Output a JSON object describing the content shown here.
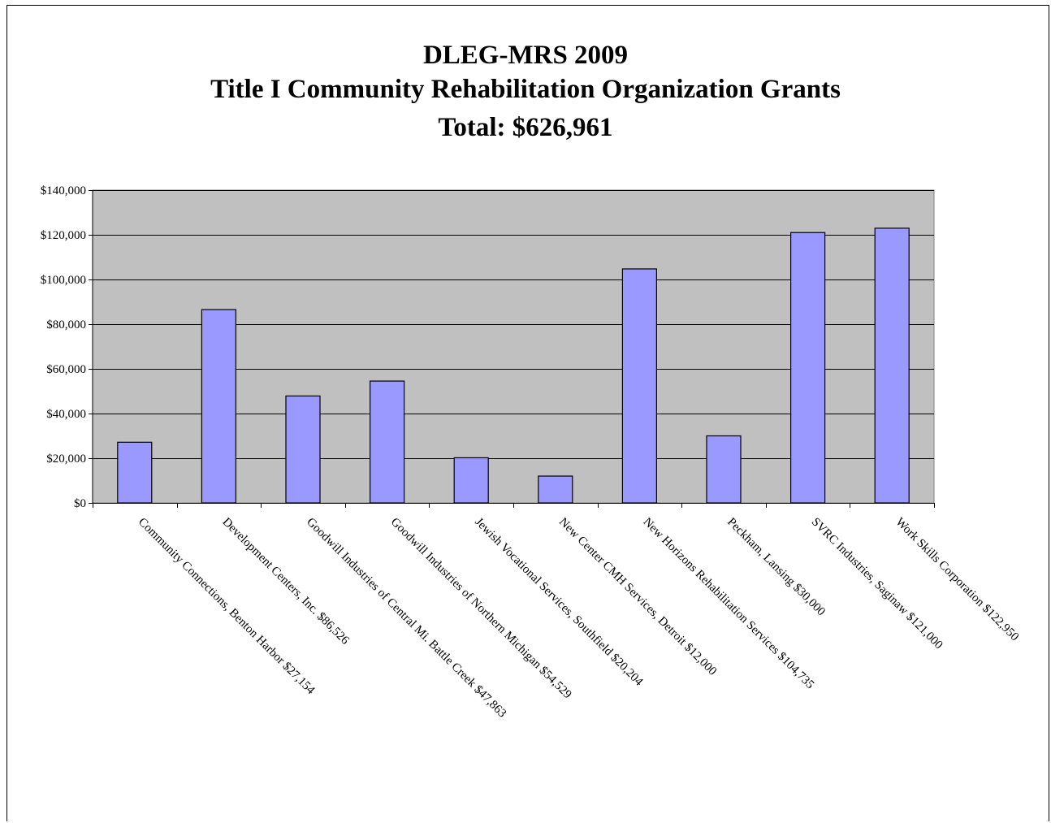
{
  "chart_data": {
    "type": "bar",
    "title_lines": [
      "DLEG-MRS 2009",
      "Title I Community Rehabilitation Organization Grants",
      "Total: $626,961"
    ],
    "categories": [
      "Community Connections, Benton Harbor $27,154",
      "Development Centers, Inc. $86,526",
      "Goodwill Industries of Central Mi. Battle Creek $47,863",
      "Goodwill Industries of Northern Michigan $54,529",
      "Jewish Vocational Services, Southfield $20,204",
      "New Center CMH Services, Detroit $12,000",
      "New Horizons Rehabilitation Services $104,735",
      "Peckham, Lansing $30,000",
      "SVRC Industries, Saginaw $121,000",
      "Work Skills Corporation $122,950"
    ],
    "values": [
      27154,
      86526,
      47863,
      54529,
      20204,
      12000,
      104735,
      30000,
      121000,
      122950
    ],
    "ylim": [
      0,
      140000
    ],
    "yticks": [
      0,
      20000,
      40000,
      60000,
      80000,
      100000,
      120000,
      140000
    ],
    "ytick_labels": [
      "$0",
      "$20,000",
      "$40,000",
      "$60,000",
      "$80,000",
      "$100,000",
      "$120,000",
      "$140,000"
    ],
    "xlabel": "",
    "ylabel": "",
    "grid": true,
    "colors": {
      "bar_fill": "#9999ff",
      "bar_stroke": "#000000",
      "plot_bg": "#c0c0c0",
      "gridline": "#000000"
    }
  }
}
